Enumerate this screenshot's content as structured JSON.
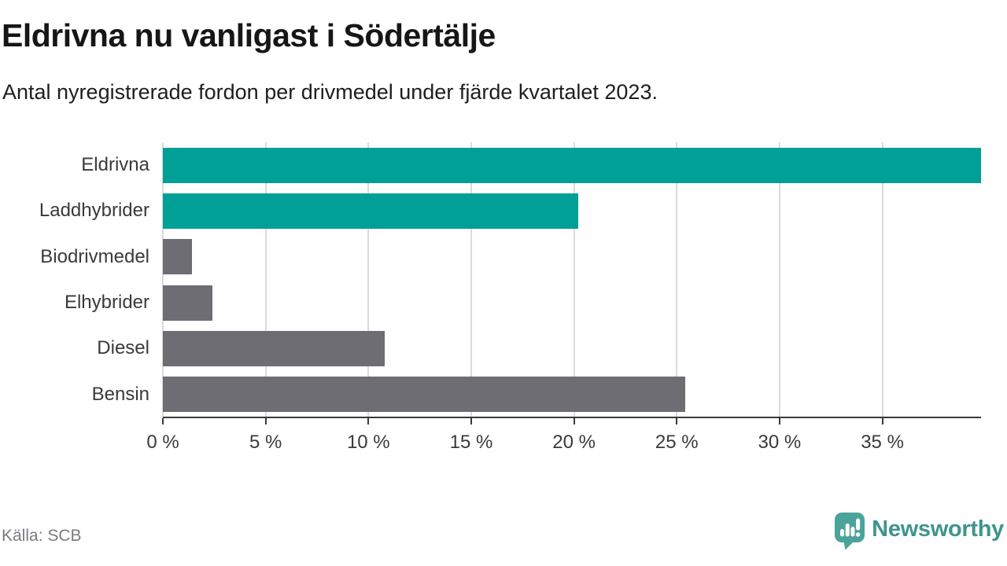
{
  "title": "Eldrivna nu vanligast i Södertälje",
  "subtitle": "Antal nyregistrerade fordon per drivmedel under fjärde kvartalet 2023.",
  "source": "Källa: SCB",
  "brand": {
    "name": "Newsworthy",
    "icon": "newsworthy-speech-bubble-barchart-icon",
    "mark_color": "#4ba39a",
    "text_color": "#3f948c"
  },
  "colors": {
    "highlight_bar": "#00a096",
    "default_bar": "#6e6d73",
    "gridline": "#dadada",
    "axis": "#3a3a3a",
    "label_text": "#3a3a3a"
  },
  "chart_data": {
    "type": "bar",
    "orientation": "horizontal",
    "title": "Eldrivna nu vanligast i Södertälje",
    "subtitle": "Antal nyregistrerade fordon per drivmedel under fjärde kvartalet 2023.",
    "categories": [
      "Eldrivna",
      "Laddhybrider",
      "Biodrivmedel",
      "Elhybrider",
      "Diesel",
      "Bensin"
    ],
    "values": [
      39.8,
      20.2,
      1.4,
      2.4,
      10.8,
      25.4
    ],
    "unit": "%",
    "series_colors": [
      "#00a096",
      "#00a096",
      "#6e6d73",
      "#6e6d73",
      "#6e6d73",
      "#6e6d73"
    ],
    "highlighted_categories": [
      "Eldrivna",
      "Laddhybrider"
    ],
    "xlabel": "",
    "ylabel": "",
    "xlim": [
      0,
      39.8
    ],
    "x_ticks": [
      0,
      5,
      10,
      15,
      20,
      25,
      30,
      35
    ],
    "x_tick_labels": [
      "0 %",
      "5 %",
      "10 %",
      "15 %",
      "20 %",
      "25 %",
      "30 %",
      "35 %"
    ],
    "grid": true,
    "legend": false,
    "source": "Källa: SCB"
  }
}
